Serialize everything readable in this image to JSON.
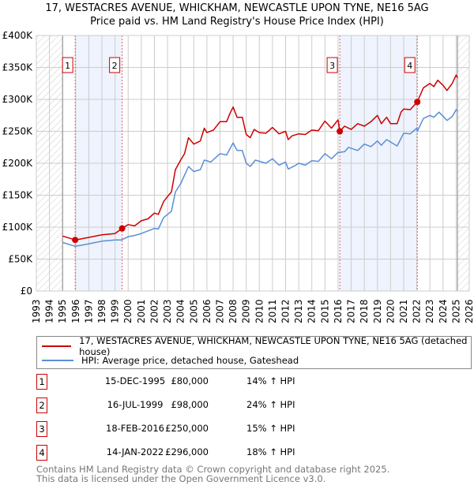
{
  "title_line1": "17, WESTACRES AVENUE, WHICKHAM, NEWCASTLE UPON TYNE, NE16 5AG",
  "title_line2": "Price paid vs. HM Land Registry's House Price Index (HPI)",
  "chart_data": {
    "type": "line",
    "title": "Price paid vs. HM Land Registry's House Price Index (HPI)",
    "xlim": [
      1993,
      2026
    ],
    "ylim": [
      0,
      400000
    ],
    "grid": true,
    "x_ticks": [
      "1993",
      "1994",
      "1995",
      "1996",
      "1997",
      "1998",
      "1999",
      "2000",
      "2001",
      "2002",
      "2003",
      "2004",
      "2005",
      "2006",
      "2007",
      "2008",
      "2009",
      "2010",
      "2011",
      "2012",
      "2013",
      "2014",
      "2015",
      "2016",
      "2017",
      "2018",
      "2019",
      "2020",
      "2021",
      "2022",
      "2023",
      "2024",
      "2025",
      "2026"
    ],
    "y_ticks": [
      {
        "v": 0,
        "label": "£0"
      },
      {
        "v": 50000,
        "label": "£50K"
      },
      {
        "v": 100000,
        "label": "£100K"
      },
      {
        "v": 150000,
        "label": "£150K"
      },
      {
        "v": 200000,
        "label": "£200K"
      },
      {
        "v": 250000,
        "label": "£250K"
      },
      {
        "v": 300000,
        "label": "£300K"
      },
      {
        "v": 350000,
        "label": "£350K"
      },
      {
        "v": 400000,
        "label": "£400K"
      }
    ],
    "hatched_ranges": [
      [
        1993,
        1995.0
      ],
      [
        2025.1,
        2026
      ]
    ],
    "shaded_ranges": [
      [
        1995.96,
        1999.54
      ],
      [
        2016.13,
        2022.04
      ]
    ],
    "series": [
      {
        "name": "17, WESTACRES AVENUE, WHICKHAM, NEWCASTLE UPON TYNE, NE16 5AG (detached house)",
        "color": "#cc0000",
        "x": [
          1995.0,
          1995.5,
          1995.96,
          1996.5,
          1997,
          1998,
          1999,
          1999.54,
          2000,
          2000.5,
          2001,
          2001.5,
          2002,
          2002.3,
          2002.7,
          2003,
          2003.3,
          2003.6,
          2004,
          2004.3,
          2004.6,
          2005,
          2005.5,
          2005.8,
          2006,
          2006.5,
          2007,
          2007.5,
          2007.8,
          2008,
          2008.3,
          2008.7,
          2009,
          2009.3,
          2009.6,
          2010,
          2010.5,
          2011,
          2011.5,
          2012,
          2012.2,
          2012.5,
          2013,
          2013.5,
          2014,
          2014.5,
          2015,
          2015.5,
          2016,
          2016.13,
          2016.5,
          2017,
          2017.5,
          2018,
          2018.5,
          2019,
          2019.3,
          2019.7,
          2020,
          2020.5,
          2020.8,
          2021,
          2021.5,
          2022.04,
          2022.5,
          2023,
          2023.3,
          2023.6,
          2024,
          2024.3,
          2024.7,
          2025,
          2025.1
        ],
        "y": [
          86000,
          83000,
          80000,
          82000,
          84000,
          88000,
          90000,
          98000,
          104000,
          102000,
          110000,
          113000,
          122000,
          120000,
          140000,
          148000,
          155000,
          190000,
          205000,
          215000,
          240000,
          230000,
          235000,
          255000,
          248000,
          252000,
          265000,
          265000,
          280000,
          288000,
          272000,
          272000,
          245000,
          240000,
          253000,
          248000,
          247000,
          256000,
          246000,
          250000,
          237000,
          243000,
          246000,
          245000,
          252000,
          251000,
          266000,
          255000,
          268000,
          250000,
          258000,
          253000,
          262000,
          258000,
          265000,
          275000,
          262000,
          272000,
          262000,
          262000,
          280000,
          285000,
          284000,
          296000,
          318000,
          325000,
          320000,
          330000,
          322000,
          314000,
          325000,
          338000,
          334000
        ]
      },
      {
        "name": "HPI: Average price, detached house, Gateshead",
        "color": "#5b8fd4",
        "x": [
          1995.0,
          1995.96,
          1996.5,
          1997,
          1998,
          1999,
          1999.5,
          2000,
          2000.5,
          2001,
          2002,
          2002.3,
          2002.7,
          2003.3,
          2003.6,
          2004,
          2004.6,
          2005,
          2005.5,
          2005.8,
          2006.3,
          2007,
          2007.5,
          2008,
          2008.3,
          2008.7,
          2009,
          2009.3,
          2009.7,
          2010.5,
          2011,
          2011.5,
          2012,
          2012.2,
          2012.7,
          2013,
          2013.5,
          2014,
          2014.5,
          2015,
          2015.5,
          2016,
          2016.5,
          2016.8,
          2017.5,
          2018,
          2018.5,
          2019,
          2019.3,
          2019.7,
          2020.5,
          2021,
          2021.5,
          2022,
          2022.04,
          2022.5,
          2023,
          2023.3,
          2023.7,
          2024.3,
          2024.7,
          2025,
          2025.1
        ],
        "y": [
          76000,
          70000,
          72000,
          74000,
          78000,
          80000,
          80000,
          85000,
          87000,
          90000,
          98000,
          97000,
          115000,
          125000,
          155000,
          168000,
          195000,
          187000,
          190000,
          205000,
          202000,
          215000,
          213000,
          232000,
          220000,
          220000,
          200000,
          195000,
          205000,
          200000,
          207000,
          197000,
          202000,
          191000,
          196000,
          200000,
          197000,
          204000,
          203000,
          215000,
          207000,
          217000,
          218000,
          225000,
          220000,
          230000,
          226000,
          235000,
          228000,
          237000,
          227000,
          247000,
          246000,
          255000,
          250000,
          270000,
          275000,
          272000,
          280000,
          267000,
          273000,
          284000,
          282000
        ]
      }
    ],
    "sales": [
      {
        "label": "1",
        "x": 1995.96,
        "y": 80000
      },
      {
        "label": "2",
        "x": 1999.54,
        "y": 98000
      },
      {
        "label": "3",
        "x": 2016.13,
        "y": 250000
      },
      {
        "label": "4",
        "x": 2022.04,
        "y": 296000
      }
    ]
  },
  "legend": {
    "red_label": "17, WESTACRES AVENUE, WHICKHAM, NEWCASTLE UPON TYNE, NE16 5AG (detached house)",
    "blue_label": "HPI: Average price, detached house, Gateshead"
  },
  "transactions": [
    {
      "num": "1",
      "date": "15-DEC-1995",
      "price": "£80,000",
      "hpi": "14% ↑ HPI"
    },
    {
      "num": "2",
      "date": "16-JUL-1999",
      "price": "£98,000",
      "hpi": "24% ↑ HPI"
    },
    {
      "num": "3",
      "date": "18-FEB-2016",
      "price": "£250,000",
      "hpi": "15% ↑ HPI"
    },
    {
      "num": "4",
      "date": "14-JAN-2022",
      "price": "£296,000",
      "hpi": "18% ↑ HPI"
    }
  ],
  "footer": {
    "line1": "Contains HM Land Registry data © Crown copyright and database right 2025.",
    "line2": "This data is licensed under the Open Government Licence v3.0."
  }
}
